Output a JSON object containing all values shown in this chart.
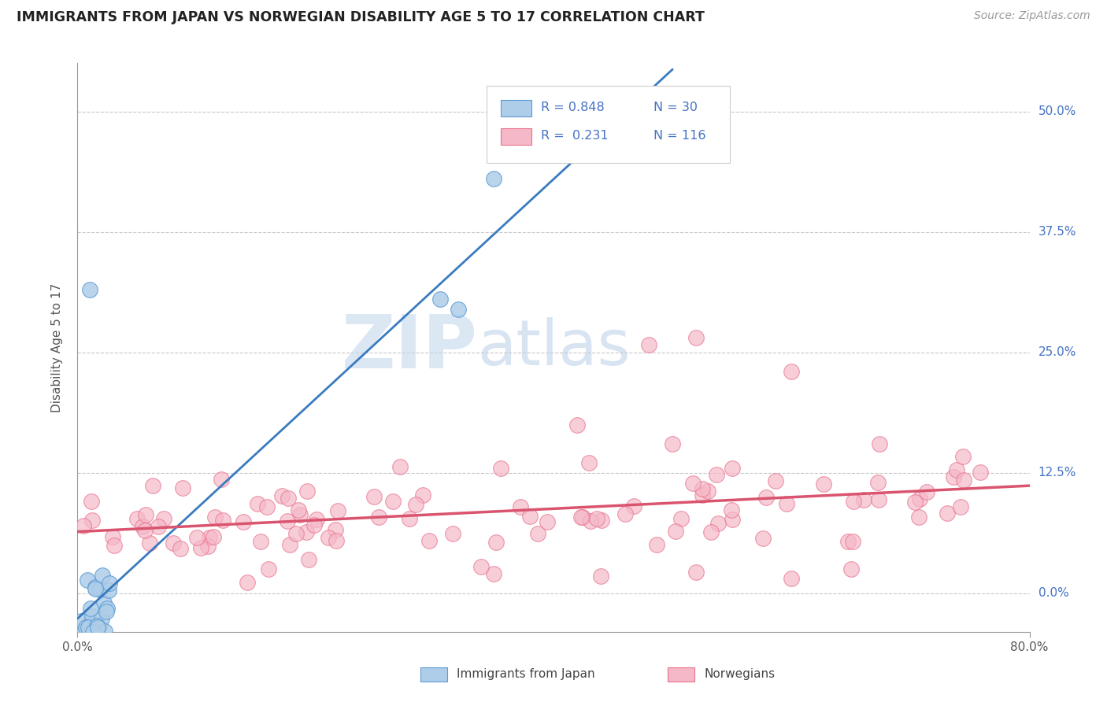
{
  "title": "IMMIGRANTS FROM JAPAN VS NORWEGIAN DISABILITY AGE 5 TO 17 CORRELATION CHART",
  "source": "Source: ZipAtlas.com",
  "ylabel": "Disability Age 5 to 17",
  "ytick_labels": [
    "0.0%",
    "12.5%",
    "25.0%",
    "37.5%",
    "50.0%"
  ],
  "ytick_values": [
    0.0,
    0.125,
    0.25,
    0.375,
    0.5
  ],
  "xlim": [
    0.0,
    0.8
  ],
  "ylim": [
    -0.04,
    0.55
  ],
  "watermark_zip": "ZIP",
  "watermark_atlas": "atlas",
  "legend_r1": "R = 0.848",
  "legend_n1": "N = 30",
  "legend_r2": "R =  0.231",
  "legend_n2": "N = 116",
  "color_japan_fill": "#aecde8",
  "color_japan_edge": "#5b9bd5",
  "color_japan_line": "#3a7abf",
  "color_norway_fill": "#f5b8c8",
  "color_norway_edge": "#e8708a",
  "color_norway_line": "#d9546e",
  "color_legend_text": "#4472c4",
  "color_grid": "#c8c8c8",
  "color_axis": "#999999",
  "color_title": "#222222",
  "color_source": "#999999",
  "color_ylabel": "#555555",
  "color_xtick": "#555555"
}
